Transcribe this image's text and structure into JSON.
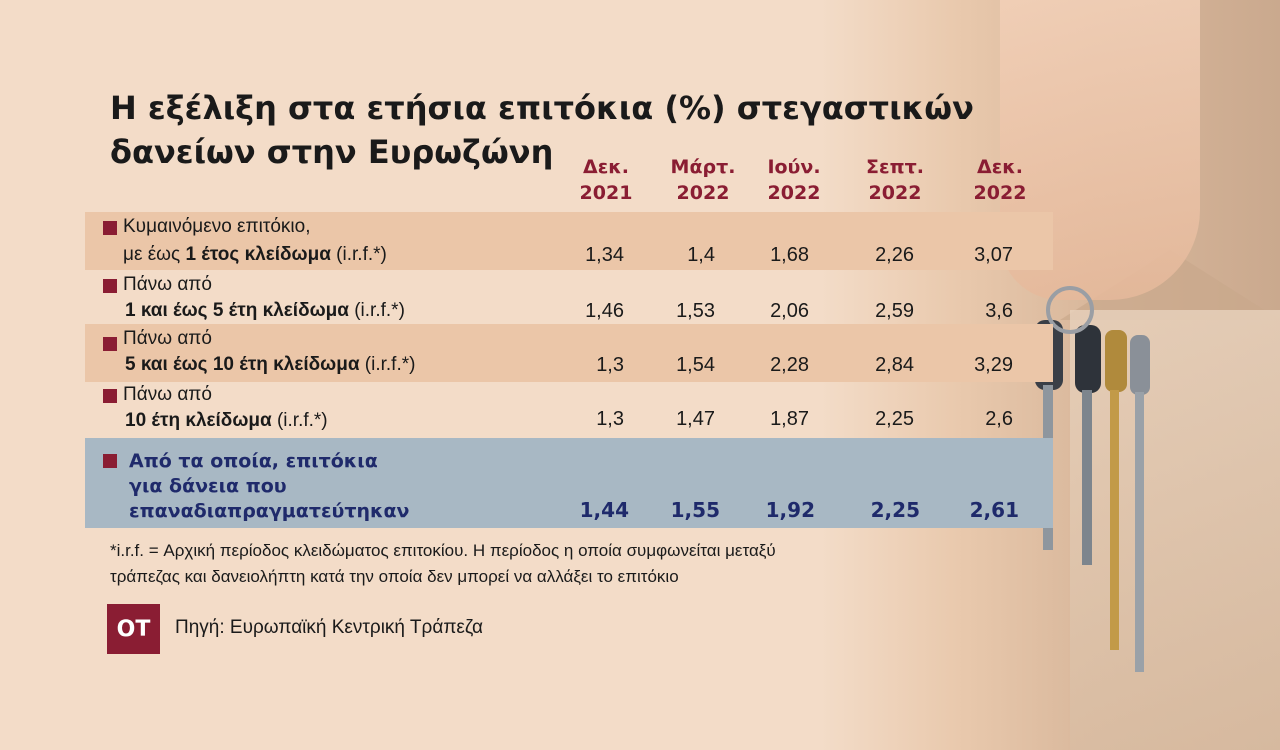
{
  "title": "Η εξέλιξη στα ετήσια επιτόκια (%) στεγαστικών δανείων στην Ευρωζώνη",
  "columns": [
    {
      "month": "Δεκ.",
      "year": "2021"
    },
    {
      "month": "Μάρτ.",
      "year": "2022"
    },
    {
      "month": "Ιούν.",
      "year": "2022"
    },
    {
      "month": "Σεπτ.",
      "year": "2022"
    },
    {
      "month": "Δεκ.",
      "year": "2022"
    }
  ],
  "rows": [
    {
      "line1": "Κυμαινόμενο επιτόκιο,",
      "line2_prefix": "με έως ",
      "line2_bold": "1 έτος κλείδωμα",
      "line2_suffix": " (i.r.f.*)",
      "values": [
        "1,34",
        "1,4",
        "1,68",
        "2,26",
        "3,07"
      ]
    },
    {
      "line1": "Πάνω από",
      "line2_prefix": "",
      "line2_bold": "1 και έως 5 έτη κλείδωμα",
      "line2_suffix": " (i.r.f.*)",
      "values": [
        "1,46",
        "1,53",
        "2,06",
        "2,59",
        "3,6"
      ]
    },
    {
      "line1": "Πάνω από",
      "line2_prefix": "",
      "line2_bold": "5 και έως 10 έτη κλείδωμα",
      "line2_suffix": " (i.r.f.*)",
      "values": [
        "1,3",
        "1,54",
        "2,28",
        "2,84",
        "3,29"
      ]
    },
    {
      "line1": "Πάνω από",
      "line2_prefix": "",
      "line2_bold": "10 έτη κλείδωμα",
      "line2_suffix": " (i.r.f.*)",
      "values": [
        "1,3",
        "1,47",
        "1,87",
        "2,25",
        "2,6"
      ]
    }
  ],
  "summary": {
    "line1": "Από τα οποία, επιτόκια",
    "line2": "για δάνεια που",
    "line3": "επαναδιαπραγματεύτηκαν",
    "values": [
      "1,44",
      "1,55",
      "1,92",
      "2,25",
      "2,61"
    ]
  },
  "footnote": {
    "line1": "*i.r.f. = Αρχική περίοδος κλειδώματος επιτοκίου. Η περίοδος η οποία συμφωνείται μεταξύ",
    "line2": "τράπεζας και δανειολήπτη κατά  την οποία δεν μπορεί να αλλάξει το επιτόκιο"
  },
  "logo": "ΟΤ",
  "source": "Πηγή: Ευρωπαϊκή Κεντρική Τράπεζα",
  "colors": {
    "accent": "#8a1d33",
    "summary_text": "#1f2a6b",
    "row_shade": "#ebc6a8",
    "summary_bg": "#a8b8c4"
  }
}
